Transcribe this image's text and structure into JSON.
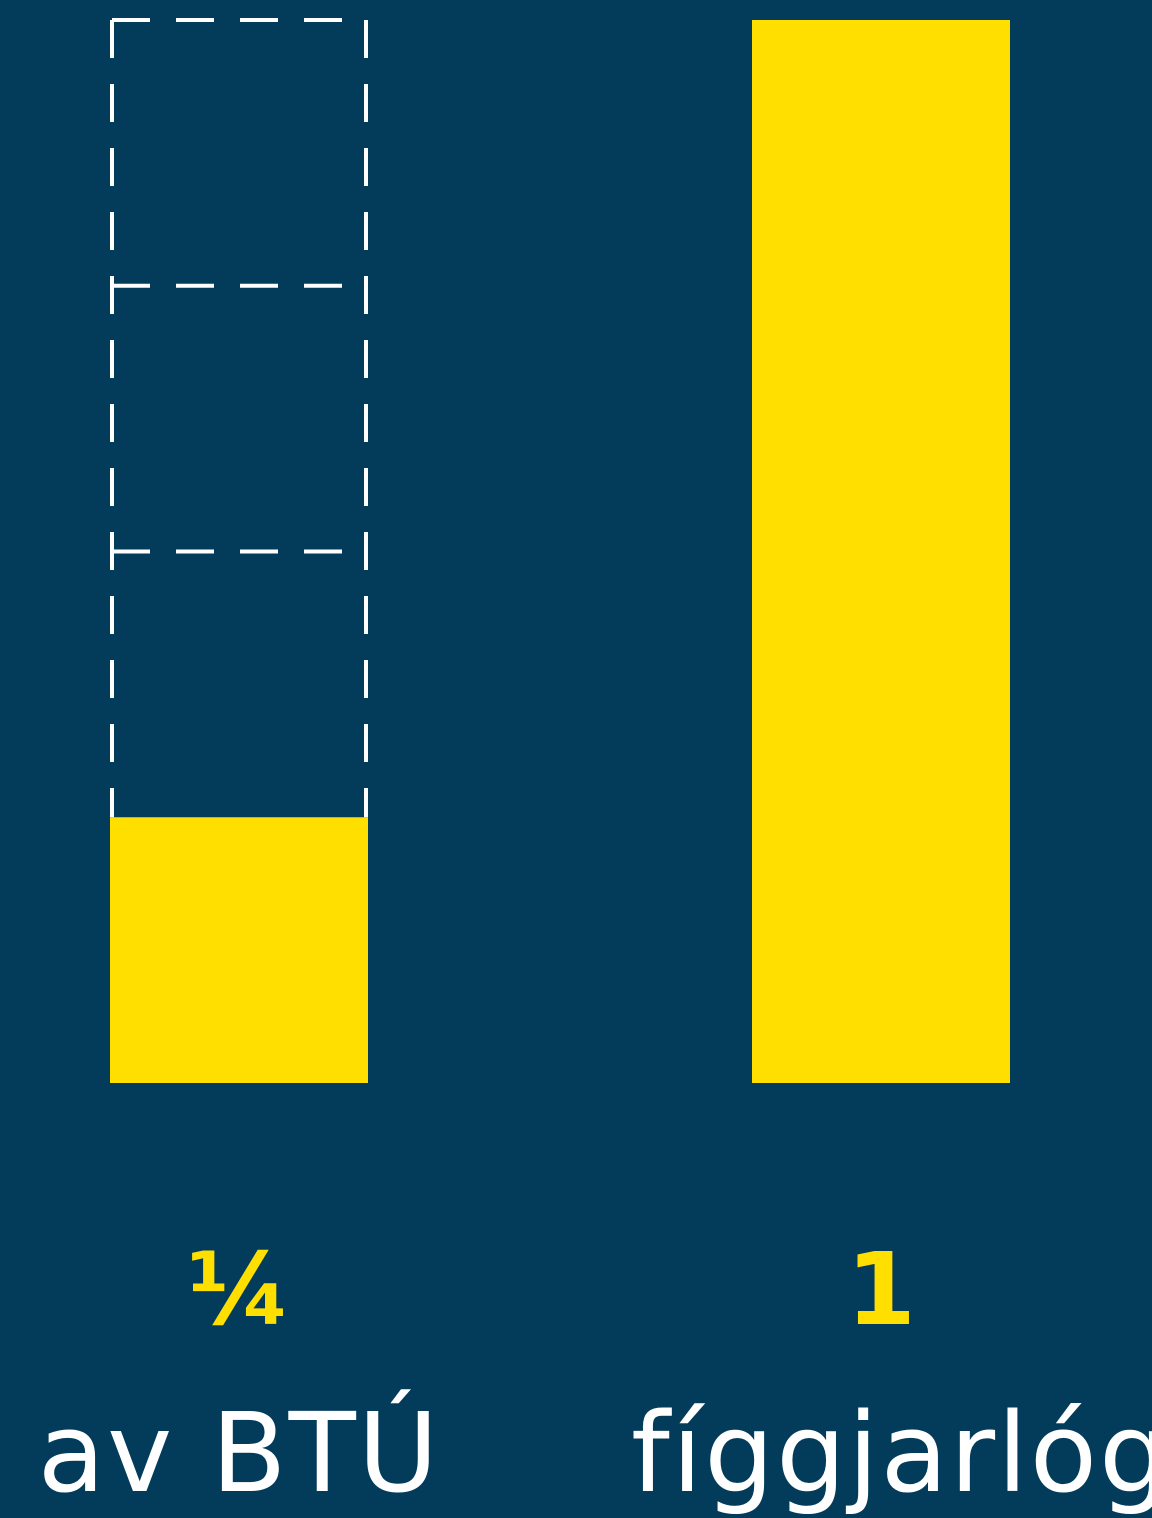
{
  "chart_data": {
    "type": "bar",
    "categories": [
      "av BTÚ",
      "fíggjarlóg"
    ],
    "values": [
      0.25,
      1
    ],
    "value_labels": [
      "¼",
      "1"
    ],
    "ylim": [
      0,
      1
    ],
    "outline_segments": 4,
    "grid": false,
    "legend": "none",
    "title": "",
    "xlabel": "",
    "ylabel": ""
  },
  "colors": {
    "background": "#023c5a",
    "bar": "#ffdf00",
    "value_label": "#ffdf00",
    "category_label": "#ffffff",
    "outline": "#ffffff"
  }
}
